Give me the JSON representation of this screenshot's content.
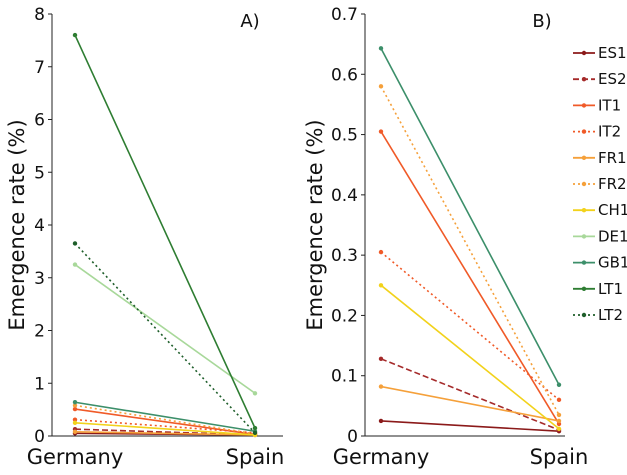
{
  "chart_data": [
    {
      "type": "line",
      "panel_label": "A)",
      "ylabel": "Emergence rate (%)",
      "xlabel": "",
      "categories": [
        "Germany",
        "Spain"
      ],
      "ylim": [
        0,
        8
      ],
      "yticks": [
        0,
        1,
        2,
        3,
        4,
        5,
        6,
        7,
        8
      ],
      "grid": false,
      "series": [
        {
          "name": "ES1",
          "values": [
            0.05,
            0.02
          ],
          "color": "#8B1A1A",
          "dash": "solid"
        },
        {
          "name": "ES2",
          "values": [
            0.13,
            0.02
          ],
          "color": "#A52A2A",
          "dash": "dashed"
        },
        {
          "name": "IT1",
          "values": [
            0.51,
            0.03
          ],
          "color": "#F05A28",
          "dash": "solid"
        },
        {
          "name": "IT2",
          "values": [
            0.31,
            0.06
          ],
          "color": "#F05A28",
          "dash": "dotted"
        },
        {
          "name": "FR1",
          "values": [
            0.08,
            0.02
          ],
          "color": "#F5A03A",
          "dash": "solid"
        },
        {
          "name": "FR2",
          "values": [
            0.58,
            0.04
          ],
          "color": "#F5A03A",
          "dash": "dotted"
        },
        {
          "name": "CH1",
          "values": [
            0.25,
            0.02
          ],
          "color": "#F2D21B",
          "dash": "solid"
        },
        {
          "name": "DE1",
          "values": [
            3.25,
            0.81
          ],
          "color": "#A8D89A",
          "dash": "solid"
        },
        {
          "name": "GB1",
          "values": [
            0.64,
            0.09
          ],
          "color": "#3C8F6A",
          "dash": "solid"
        },
        {
          "name": "LT1",
          "values": [
            7.6,
            0.15
          ],
          "color": "#2E7D32",
          "dash": "solid"
        },
        {
          "name": "LT2",
          "values": [
            3.65,
            0.06
          ],
          "color": "#1E5E2A",
          "dash": "dotted"
        }
      ]
    },
    {
      "type": "line",
      "panel_label": "B)",
      "ylabel": "Emergence rate (%)",
      "xlabel": "",
      "categories": [
        "Germany",
        "Spain"
      ],
      "ylim": [
        0,
        0.7
      ],
      "yticks": [
        0,
        0.1,
        0.2,
        0.3,
        0.4,
        0.5,
        0.6,
        0.7
      ],
      "grid": false,
      "legend_position": "right",
      "series": [
        {
          "name": "ES1",
          "values": [
            0.025,
            0.008
          ],
          "color": "#8B1A1A",
          "dash": "solid"
        },
        {
          "name": "ES2",
          "values": [
            0.128,
            0.01
          ],
          "color": "#A52A2A",
          "dash": "dashed"
        },
        {
          "name": "IT1",
          "values": [
            0.505,
            0.02
          ],
          "color": "#F05A28",
          "dash": "solid"
        },
        {
          "name": "IT2",
          "values": [
            0.305,
            0.06
          ],
          "color": "#F05A28",
          "dash": "dotted"
        },
        {
          "name": "FR1",
          "values": [
            0.082,
            0.025
          ],
          "color": "#F5A03A",
          "dash": "solid"
        },
        {
          "name": "FR2",
          "values": [
            0.58,
            0.035
          ],
          "color": "#F5A03A",
          "dash": "dotted"
        },
        {
          "name": "CH1",
          "values": [
            0.25,
            0.012
          ],
          "color": "#F2D21B",
          "dash": "solid"
        },
        {
          "name": "GB1",
          "values": [
            0.643,
            0.085
          ],
          "color": "#3C8F6A",
          "dash": "solid"
        }
      ]
    }
  ]
}
